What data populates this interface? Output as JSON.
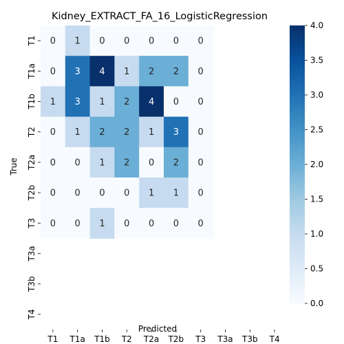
{
  "chart_data": {
    "type": "heatmap",
    "title": "Kidney_EXTRACT_FA_16_LogisticRegression",
    "xlabel": "Predicted",
    "ylabel": "True",
    "x_categories": [
      "T1",
      "T1a",
      "T1b",
      "T2",
      "T2a",
      "T2b",
      "T3",
      "T3a",
      "T3b",
      "T4"
    ],
    "y_categories": [
      "T1",
      "T1a",
      "T1b",
      "T2",
      "T2a",
      "T2b",
      "T3",
      "T3a",
      "T3b",
      "T4"
    ],
    "values": [
      [
        0,
        1,
        0,
        0,
        0,
        0,
        0,
        null,
        null,
        null
      ],
      [
        0,
        3,
        4,
        1,
        2,
        2,
        0,
        null,
        null,
        null
      ],
      [
        1,
        3,
        1,
        2,
        4,
        0,
        0,
        null,
        null,
        null
      ],
      [
        0,
        1,
        2,
        2,
        1,
        3,
        0,
        null,
        null,
        null
      ],
      [
        0,
        0,
        1,
        2,
        0,
        2,
        0,
        null,
        null,
        null
      ],
      [
        0,
        0,
        0,
        0,
        1,
        1,
        0,
        null,
        null,
        null
      ],
      [
        0,
        0,
        1,
        0,
        0,
        0,
        0,
        null,
        null,
        null
      ],
      [
        null,
        null,
        null,
        null,
        null,
        null,
        null,
        null,
        null,
        null
      ],
      [
        null,
        null,
        null,
        null,
        null,
        null,
        null,
        null,
        null,
        null
      ],
      [
        null,
        null,
        null,
        null,
        null,
        null,
        null,
        null,
        null,
        null
      ]
    ],
    "colormap": "Blues",
    "vmin": 0,
    "vmax": 4,
    "colorbar_ticks": [
      "0.0",
      "0.5",
      "1.0",
      "1.5",
      "2.0",
      "2.5",
      "3.0",
      "3.5",
      "4.0"
    ],
    "grid": false
  }
}
